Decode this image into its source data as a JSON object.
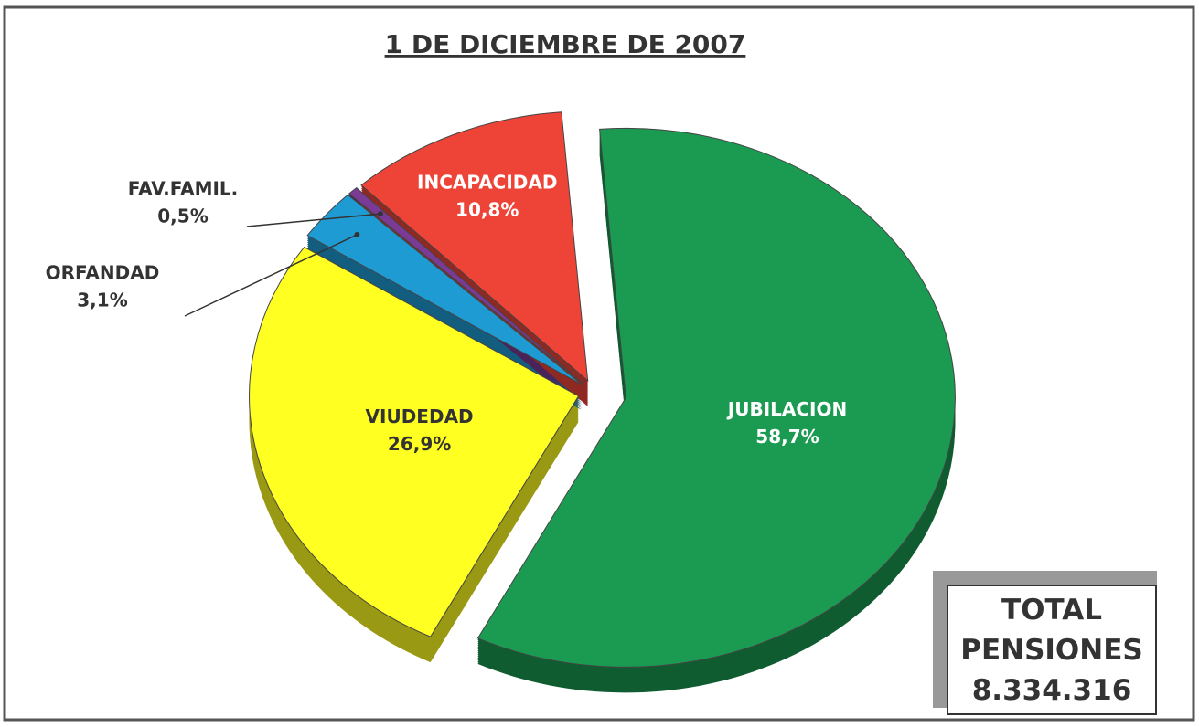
{
  "chart_data": {
    "type": "pie",
    "title": "1 DE DICIEMBRE DE 2007",
    "categories": [
      "JUBILACION",
      "VIUDEDAD",
      "ORFANDAD",
      "FAV.FAMIL.",
      "INCAPACIDAD"
    ],
    "values": [
      58.7,
      26.9,
      3.1,
      0.5,
      10.8
    ],
    "value_labels": [
      "58,7%",
      "26,9%",
      "3,1%",
      "0,5%",
      "10,8%"
    ],
    "colors": [
      "#1b9a52",
      "#ffff22",
      "#1f9bd4",
      "#7a3a96",
      "#ee4438"
    ],
    "label_colors": [
      "#ffffff",
      "#333333",
      "#333333",
      "#333333",
      "#ffffff"
    ],
    "total_label": "TOTAL PENSIONES",
    "total": "8.334.316"
  }
}
